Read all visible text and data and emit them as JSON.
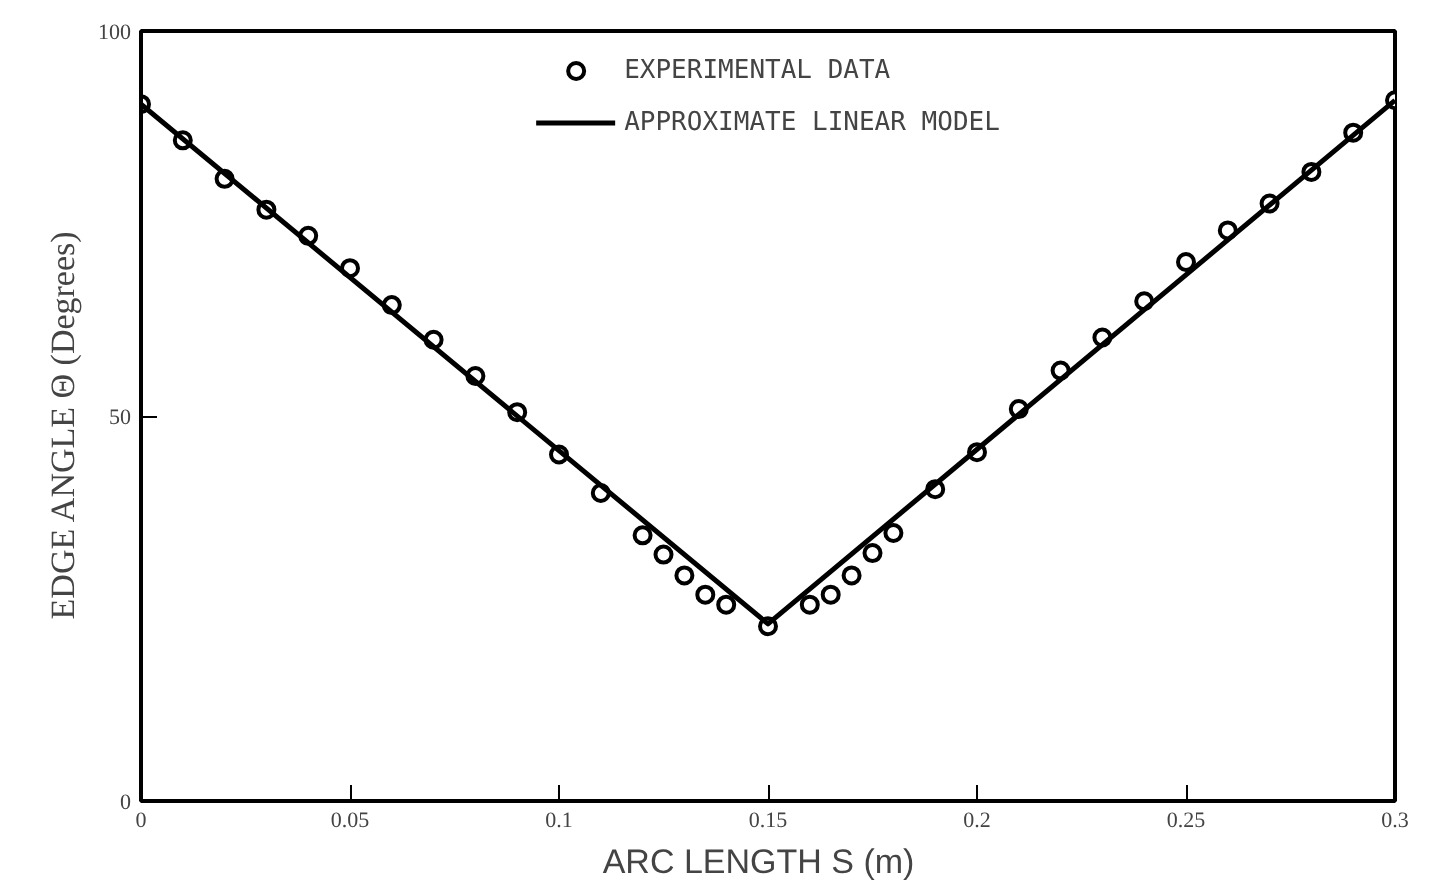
{
  "chart_data": {
    "type": "scatter",
    "xlabel": "ARC LENGTH  S  (m)",
    "ylabel": "EDGE ANGLE  Θ  (Degrees)",
    "xlim": [
      0,
      0.3
    ],
    "ylim": [
      0,
      100
    ],
    "xticks": [
      0,
      0.05,
      0.1,
      0.15,
      0.2,
      0.25,
      0.3
    ],
    "yticks": [
      0,
      50,
      100
    ],
    "grid": false,
    "legend": "top",
    "series": [
      {
        "name": "EXPERIMENTAL DATA",
        "marker": "circle",
        "color": "#000000",
        "x": [
          0,
          0.01,
          0.02,
          0.03,
          0.04,
          0.05,
          0.06,
          0.07,
          0.08,
          0.09,
          0.1,
          0.11,
          0.12,
          0.125,
          0.13,
          0.135,
          0.14,
          0.15,
          0.16,
          0.165,
          0.17,
          0.175,
          0.18,
          0.19,
          0.2,
          0.21,
          0.22,
          0.23,
          0.24,
          0.25,
          0.26,
          0.27,
          0.28,
          0.29,
          0.3
        ],
        "values": [
          90.5,
          85.8,
          80.8,
          76.8,
          73.4,
          69.2,
          64.4,
          59.9,
          55.2,
          50.5,
          45,
          40,
          34.5,
          32,
          29.3,
          26.8,
          25.5,
          22.7,
          25.5,
          26.8,
          29.3,
          32.2,
          34.8,
          40.5,
          45.3,
          50.9,
          55.9,
          60.2,
          64.9,
          70,
          74.1,
          77.6,
          81.7,
          86.8,
          91
        ]
      },
      {
        "name": "APPROXIMATE LINEAR MODEL",
        "type": "line",
        "color": "#000000",
        "x": [
          0,
          0.15,
          0.3
        ],
        "values": [
          90.5,
          23,
          91
        ]
      }
    ]
  }
}
